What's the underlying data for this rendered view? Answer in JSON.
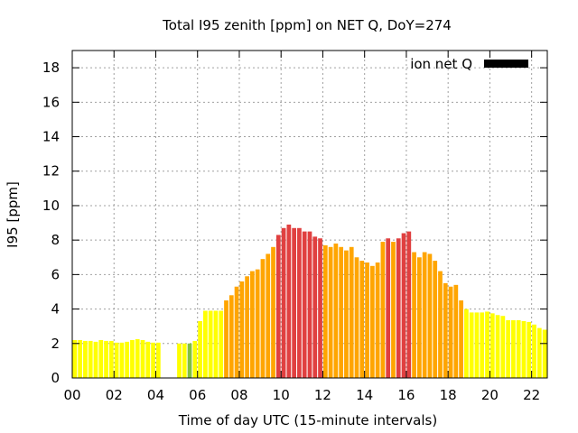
{
  "chart_data": {
    "type": "bar",
    "title": "Total I95 zenith [ppm] on NET Q, DoY=274",
    "xlabel": "Time of day UTC (15-minute intervals)",
    "ylabel": "I95 [ppm]",
    "legend": {
      "label": "ion net Q",
      "color": "#000000",
      "placement": "top-right"
    },
    "grid": true,
    "xlim": [
      0,
      22.75
    ],
    "ylim": [
      0,
      19
    ],
    "xticks": [
      "00",
      "02",
      "04",
      "06",
      "08",
      "10",
      "12",
      "14",
      "16",
      "18",
      "20",
      "22"
    ],
    "yticks": [
      "0",
      "2",
      "4",
      "6",
      "8",
      "10",
      "12",
      "14",
      "16",
      "18"
    ],
    "bar_width_hours": 0.25,
    "level_colors": {
      "low": "#ffff00",
      "medium": "#ffa500",
      "high": "#e04040",
      "other": "#80c040"
    },
    "bars": [
      {
        "t": 0.0,
        "v": 2.2,
        "c": "low"
      },
      {
        "t": 0.25,
        "v": 2.2,
        "c": "low"
      },
      {
        "t": 0.5,
        "v": 2.15,
        "c": "low"
      },
      {
        "t": 0.75,
        "v": 2.15,
        "c": "low"
      },
      {
        "t": 1.0,
        "v": 2.1,
        "c": "low"
      },
      {
        "t": 1.25,
        "v": 2.2,
        "c": "low"
      },
      {
        "t": 1.5,
        "v": 2.15,
        "c": "low"
      },
      {
        "t": 1.75,
        "v": 2.15,
        "c": "low"
      },
      {
        "t": 2.0,
        "v": 2.05,
        "c": "low"
      },
      {
        "t": 2.25,
        "v": 2.05,
        "c": "low"
      },
      {
        "t": 2.5,
        "v": 2.1,
        "c": "low"
      },
      {
        "t": 2.75,
        "v": 2.2,
        "c": "low"
      },
      {
        "t": 3.0,
        "v": 2.25,
        "c": "low"
      },
      {
        "t": 3.25,
        "v": 2.2,
        "c": "low"
      },
      {
        "t": 3.5,
        "v": 2.1,
        "c": "low"
      },
      {
        "t": 3.75,
        "v": 2.05,
        "c": "low"
      },
      {
        "t": 4.0,
        "v": 2.05,
        "c": "low"
      },
      {
        "t": 5.0,
        "v": 2.0,
        "c": "low"
      },
      {
        "t": 5.25,
        "v": 2.0,
        "c": "low"
      },
      {
        "t": 5.5,
        "v": 2.0,
        "c": "other"
      },
      {
        "t": 5.75,
        "v": 2.15,
        "c": "low"
      },
      {
        "t": 6.0,
        "v": 3.3,
        "c": "low"
      },
      {
        "t": 6.25,
        "v": 3.9,
        "c": "low"
      },
      {
        "t": 6.5,
        "v": 3.9,
        "c": "low"
      },
      {
        "t": 6.75,
        "v": 3.9,
        "c": "low"
      },
      {
        "t": 7.0,
        "v": 3.9,
        "c": "low"
      },
      {
        "t": 7.25,
        "v": 4.5,
        "c": "medium"
      },
      {
        "t": 7.5,
        "v": 4.8,
        "c": "medium"
      },
      {
        "t": 7.75,
        "v": 5.3,
        "c": "medium"
      },
      {
        "t": 8.0,
        "v": 5.6,
        "c": "medium"
      },
      {
        "t": 8.25,
        "v": 5.9,
        "c": "medium"
      },
      {
        "t": 8.5,
        "v": 6.2,
        "c": "medium"
      },
      {
        "t": 8.75,
        "v": 6.3,
        "c": "medium"
      },
      {
        "t": 9.0,
        "v": 6.9,
        "c": "medium"
      },
      {
        "t": 9.25,
        "v": 7.2,
        "c": "medium"
      },
      {
        "t": 9.5,
        "v": 7.6,
        "c": "medium"
      },
      {
        "t": 9.75,
        "v": 8.3,
        "c": "high"
      },
      {
        "t": 10.0,
        "v": 8.7,
        "c": "high"
      },
      {
        "t": 10.25,
        "v": 8.9,
        "c": "high"
      },
      {
        "t": 10.5,
        "v": 8.7,
        "c": "high"
      },
      {
        "t": 10.75,
        "v": 8.7,
        "c": "high"
      },
      {
        "t": 11.0,
        "v": 8.5,
        "c": "high"
      },
      {
        "t": 11.25,
        "v": 8.5,
        "c": "high"
      },
      {
        "t": 11.5,
        "v": 8.2,
        "c": "high"
      },
      {
        "t": 11.75,
        "v": 8.1,
        "c": "high"
      },
      {
        "t": 12.0,
        "v": 7.7,
        "c": "medium"
      },
      {
        "t": 12.25,
        "v": 7.6,
        "c": "medium"
      },
      {
        "t": 12.5,
        "v": 7.8,
        "c": "medium"
      },
      {
        "t": 12.75,
        "v": 7.6,
        "c": "medium"
      },
      {
        "t": 13.0,
        "v": 7.4,
        "c": "medium"
      },
      {
        "t": 13.25,
        "v": 7.6,
        "c": "medium"
      },
      {
        "t": 13.5,
        "v": 7.0,
        "c": "medium"
      },
      {
        "t": 13.75,
        "v": 6.8,
        "c": "medium"
      },
      {
        "t": 14.0,
        "v": 6.7,
        "c": "medium"
      },
      {
        "t": 14.25,
        "v": 6.5,
        "c": "medium"
      },
      {
        "t": 14.5,
        "v": 6.7,
        "c": "medium"
      },
      {
        "t": 14.75,
        "v": 7.9,
        "c": "medium"
      },
      {
        "t": 15.0,
        "v": 8.1,
        "c": "high"
      },
      {
        "t": 15.25,
        "v": 7.9,
        "c": "medium"
      },
      {
        "t": 15.5,
        "v": 8.1,
        "c": "high"
      },
      {
        "t": 15.75,
        "v": 8.4,
        "c": "high"
      },
      {
        "t": 16.0,
        "v": 8.5,
        "c": "high"
      },
      {
        "t": 16.25,
        "v": 7.3,
        "c": "medium"
      },
      {
        "t": 16.5,
        "v": 7.0,
        "c": "medium"
      },
      {
        "t": 16.75,
        "v": 7.3,
        "c": "medium"
      },
      {
        "t": 17.0,
        "v": 7.2,
        "c": "medium"
      },
      {
        "t": 17.25,
        "v": 6.8,
        "c": "medium"
      },
      {
        "t": 17.5,
        "v": 6.2,
        "c": "medium"
      },
      {
        "t": 17.75,
        "v": 5.5,
        "c": "medium"
      },
      {
        "t": 18.0,
        "v": 5.3,
        "c": "medium"
      },
      {
        "t": 18.25,
        "v": 5.4,
        "c": "medium"
      },
      {
        "t": 18.5,
        "v": 4.5,
        "c": "medium"
      },
      {
        "t": 18.75,
        "v": 4.0,
        "c": "low"
      },
      {
        "t": 19.0,
        "v": 3.8,
        "c": "low"
      },
      {
        "t": 19.25,
        "v": 3.8,
        "c": "low"
      },
      {
        "t": 19.5,
        "v": 3.8,
        "c": "low"
      },
      {
        "t": 19.75,
        "v": 3.85,
        "c": "low"
      },
      {
        "t": 20.0,
        "v": 3.75,
        "c": "low"
      },
      {
        "t": 20.25,
        "v": 3.65,
        "c": "low"
      },
      {
        "t": 20.5,
        "v": 3.6,
        "c": "low"
      },
      {
        "t": 20.75,
        "v": 3.35,
        "c": "low"
      },
      {
        "t": 21.0,
        "v": 3.35,
        "c": "low"
      },
      {
        "t": 21.25,
        "v": 3.35,
        "c": "low"
      },
      {
        "t": 21.5,
        "v": 3.3,
        "c": "low"
      },
      {
        "t": 21.75,
        "v": 3.25,
        "c": "low"
      },
      {
        "t": 22.0,
        "v": 3.1,
        "c": "low"
      },
      {
        "t": 22.25,
        "v": 2.9,
        "c": "low"
      },
      {
        "t": 22.5,
        "v": 2.8,
        "c": "low"
      }
    ]
  }
}
